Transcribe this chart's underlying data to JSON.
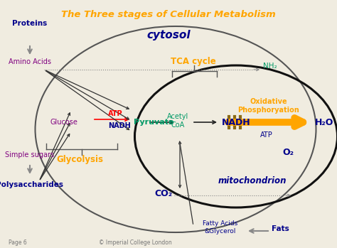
{
  "title": "The Three stages of Cellular Metabolism",
  "title_color": "#FFA500",
  "bg_color": "#f0ece0",
  "cytosol_label": "cytosol",
  "cytosol_color": "#00008B",
  "tca_label": "TCA cycle",
  "tca_color": "#FFA500",
  "mito_label": "mitochondrion",
  "mito_color": "#00008B",
  "glycolysis_label": "Glycolysis",
  "glycolysis_color": "#FFA500",
  "ox_phos_line1": "Oxidative",
  "ox_phos_line2": "Phosphoryation",
  "ox_phos_color": "#FFA500",
  "arrow_orange": "#FFA500",
  "arrow_dark": "#222222",
  "arrow_red": "#FF0000",
  "arrow_gray": "#888888",
  "bar_color": "#8B6914",
  "label_blue": "#00008B",
  "label_purple": "#800080",
  "label_green": "#009966",
  "label_red": "#FF0000",
  "label_gray": "#555555",
  "footer_left": "Page 6",
  "footer_center": "© Imperial College London",
  "footer_color": "#777777"
}
